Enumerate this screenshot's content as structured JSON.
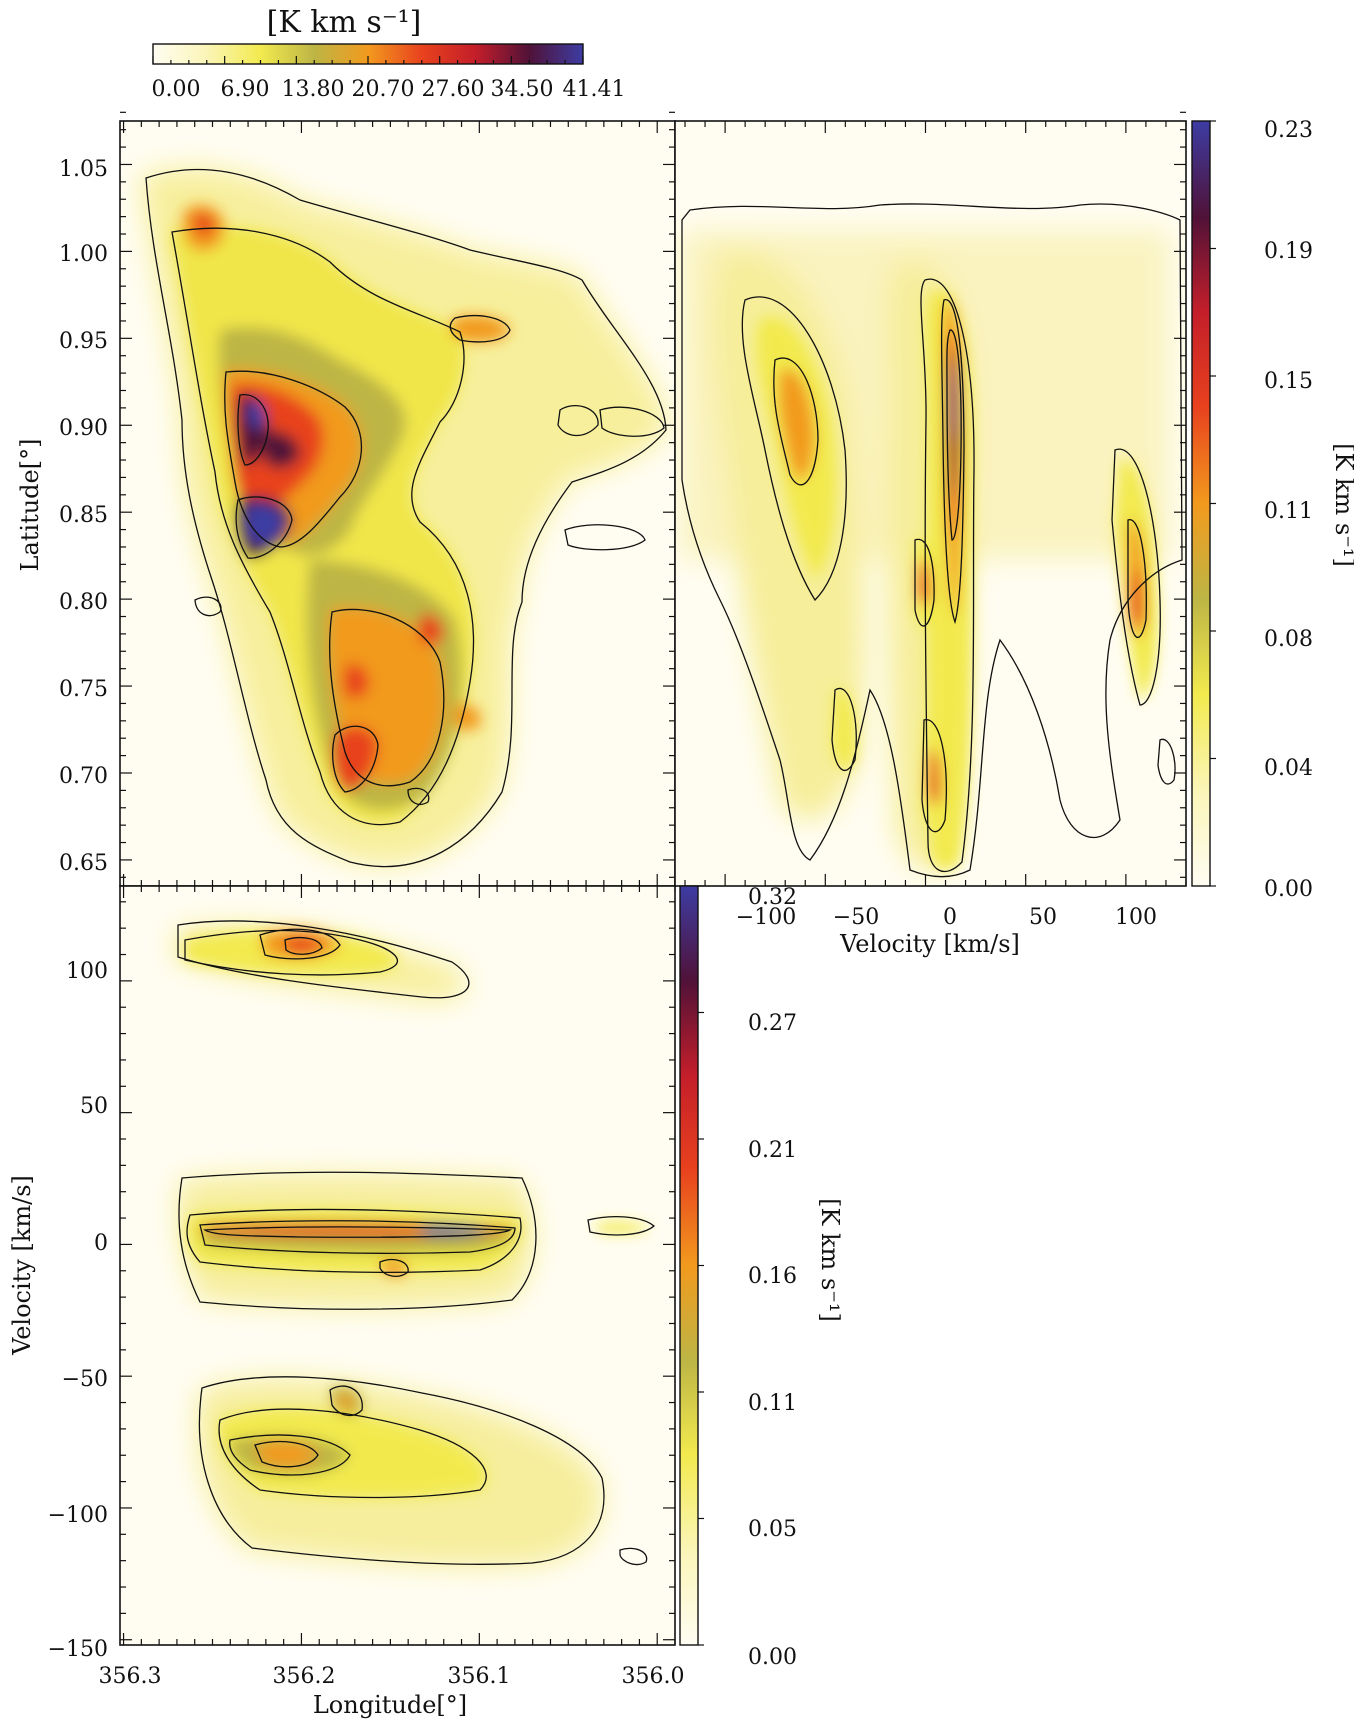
{
  "colormap": [
    "#fffdf2",
    "#fbf5b8",
    "#f2ea4e",
    "#bdb545",
    "#f29a1e",
    "#e8421e",
    "#c41e2a",
    "#501238",
    "#3d3ca3"
  ],
  "charts": {
    "moment0": {
      "colorbar": {
        "title": "[K km s⁻¹]",
        "ticks": [
          "0.00",
          "6.90",
          "13.80",
          "20.70",
          "27.60",
          "34.50",
          "41.41"
        ]
      },
      "ylabel": "Latitude[°]",
      "yticks": [
        "1.05",
        "1.00",
        "0.95",
        "0.90",
        "0.85",
        "0.80",
        "0.75",
        "0.70",
        "0.65"
      ]
    },
    "bv": {
      "xlabel": "Velocity [km/s]",
      "xticks": [
        "−100",
        "−50",
        "0",
        "50",
        "100"
      ],
      "colorbar": {
        "title": "[K km s⁻¹]",
        "ticks": [
          "0.23",
          "0.19",
          "0.15",
          "0.11",
          "0.08",
          "0.04",
          "0.00"
        ]
      }
    },
    "lv": {
      "xlabel": "Longitude[°]",
      "ylabel": "Velocity [km/s]",
      "xticks": [
        "356.3",
        "356.2",
        "356.1",
        "356.0"
      ],
      "yticks": [
        "100",
        "50",
        "0",
        "−50",
        "−100",
        "−150"
      ],
      "colorbar": {
        "title": "[K km s⁻¹]",
        "ticks": [
          "0.32",
          "0.27",
          "0.21",
          "0.16",
          "0.11",
          "0.05",
          "0.00"
        ]
      }
    }
  },
  "chart_data": [
    {
      "type": "heatmap",
      "panel": "integrated intensity map",
      "x": {
        "label": "",
        "range": [
          356.302,
          355.99
        ]
      },
      "y": {
        "label": "Latitude[°]",
        "range": [
          0.635,
          1.075
        ],
        "ticks": [
          1.05,
          1.0,
          0.95,
          0.9,
          0.85,
          0.8,
          0.75,
          0.7,
          0.65
        ]
      },
      "colorbar": {
        "label": "[K km s⁻¹]",
        "range": [
          0.0,
          41.41
        ],
        "ticks": [
          0.0,
          6.9,
          13.8,
          20.7,
          27.6,
          34.5,
          41.41
        ],
        "placement": "top"
      },
      "features": [
        {
          "l": 356.19,
          "b": 0.84,
          "value": 41.4
        },
        {
          "l": 356.19,
          "b": 0.91,
          "value": 38.0
        },
        {
          "l": 356.18,
          "b": 0.876,
          "value": 33.0
        },
        {
          "l": 356.17,
          "b": 0.71,
          "value": 27.0
        },
        {
          "l": 356.16,
          "b": 0.76,
          "value": 25.0
        },
        {
          "l": 356.12,
          "b": 0.79,
          "value": 22.0
        },
        {
          "l": 356.26,
          "b": 1.01,
          "value": 24.0
        },
        {
          "l": 356.11,
          "b": 0.955,
          "value": 20.0
        }
      ]
    },
    {
      "type": "heatmap",
      "panel": "latitude-velocity map",
      "x": {
        "label": "Velocity [km/s]",
        "range": [
          -125,
          130
        ],
        "ticks": [
          -100,
          -50,
          0,
          50,
          100
        ]
      },
      "y": {
        "label": "Latitude[°]",
        "range": [
          0.635,
          1.075
        ]
      },
      "colorbar": {
        "label": "[K km s⁻¹]",
        "range": [
          0.0,
          0.23
        ],
        "ticks": [
          0.23,
          0.19,
          0.15,
          0.11,
          0.08,
          0.04,
          0.0
        ],
        "placement": "right"
      },
      "features": [
        {
          "v": 8,
          "b": 0.91,
          "value": 0.23
        },
        {
          "v": 8,
          "b": 0.86,
          "value": 0.2
        },
        {
          "v": -10,
          "b": 0.82,
          "value": 0.17
        },
        {
          "v": -8,
          "b": 0.69,
          "value": 0.15
        },
        {
          "v": -85,
          "b": 0.9,
          "value": 0.11
        },
        {
          "v": 108,
          "b": 0.79,
          "value": 0.14
        }
      ]
    },
    {
      "type": "heatmap",
      "panel": "longitude-velocity map",
      "x": {
        "label": "Longitude[°]",
        "range": [
          356.302,
          355.99
        ],
        "ticks": [
          356.3,
          356.2,
          356.1,
          356.0
        ]
      },
      "y": {
        "label": "Velocity [km/s]",
        "range": [
          -152,
          136
        ],
        "ticks": [
          100,
          50,
          0,
          -50,
          -100,
          -150
        ]
      },
      "colorbar": {
        "label": "[K km s⁻¹]",
        "range": [
          0.0,
          0.32
        ],
        "ticks": [
          0.32,
          0.27,
          0.21,
          0.16,
          0.11,
          0.05,
          0.0
        ],
        "placement": "right"
      },
      "features": [
        {
          "l": 356.12,
          "v": 8,
          "value": 0.32
        },
        {
          "l": 356.2,
          "v": 8,
          "value": 0.24
        },
        {
          "l": 356.19,
          "v": 108,
          "value": 0.24
        },
        {
          "l": 356.2,
          "v": -86,
          "value": 0.16
        },
        {
          "l": 356.16,
          "v": -60,
          "value": 0.14
        },
        {
          "l": 356.16,
          "v": -7,
          "value": 0.13
        },
        {
          "l": 356.01,
          "v": 12,
          "value": 0.1
        }
      ]
    }
  ]
}
